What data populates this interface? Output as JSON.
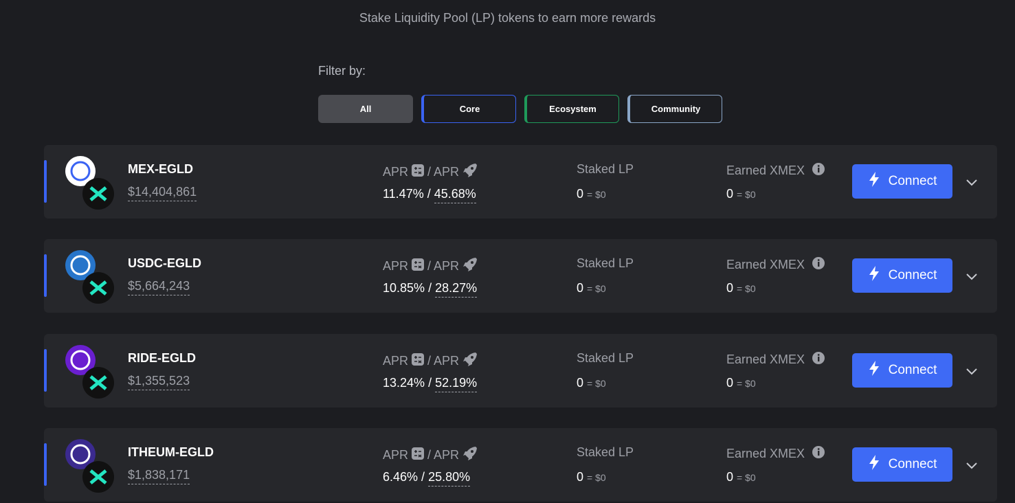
{
  "subtitle": "Stake Liquidity Pool (LP) tokens to earn more rewards",
  "filter": {
    "label": "Filter by:",
    "options": [
      "All",
      "Core",
      "Ecosystem",
      "Community"
    ]
  },
  "farms": [
    {
      "name": "MEX-EGLD",
      "liquidity": "$14,404,861",
      "apr_label": "APR",
      "boosted_apr_label": "/ APR",
      "base_apr": "11.47%",
      "separator": "/",
      "boosted_apr": "45.68%",
      "staked_label": "Staked LP",
      "staked_amount": "0",
      "staked_value": "= $0",
      "earned_label": "Earned XMEX",
      "earned_amount": "0",
      "earned_value": "= $0",
      "button": "Connect"
    },
    {
      "name": "USDC-EGLD",
      "liquidity": "$5,664,243",
      "apr_label": "APR",
      "boosted_apr_label": "/ APR",
      "base_apr": "10.85%",
      "separator": "/",
      "boosted_apr": "28.27%",
      "staked_label": "Staked LP",
      "staked_amount": "0",
      "staked_value": "= $0",
      "earned_label": "Earned XMEX",
      "earned_amount": "0",
      "earned_value": "= $0",
      "button": "Connect"
    },
    {
      "name": "RIDE-EGLD",
      "liquidity": "$1,355,523",
      "apr_label": "APR",
      "boosted_apr_label": "/ APR",
      "base_apr": "13.24%",
      "separator": "/",
      "boosted_apr": "52.19%",
      "staked_label": "Staked LP",
      "staked_amount": "0",
      "staked_value": "= $0",
      "earned_label": "Earned XMEX",
      "earned_amount": "0",
      "earned_value": "= $0",
      "button": "Connect"
    },
    {
      "name": "ITHEUM-EGLD",
      "liquidity": "$1,838,171",
      "apr_label": "APR",
      "boosted_apr_label": "/ APR",
      "base_apr": "6.46%",
      "separator": "/",
      "boosted_apr": "25.80%",
      "staked_label": "Staked LP",
      "staked_amount": "0",
      "staked_value": "= $0",
      "earned_label": "Earned XMEX",
      "earned_amount": "0",
      "earned_value": "= $0",
      "button": "Connect"
    }
  ]
}
